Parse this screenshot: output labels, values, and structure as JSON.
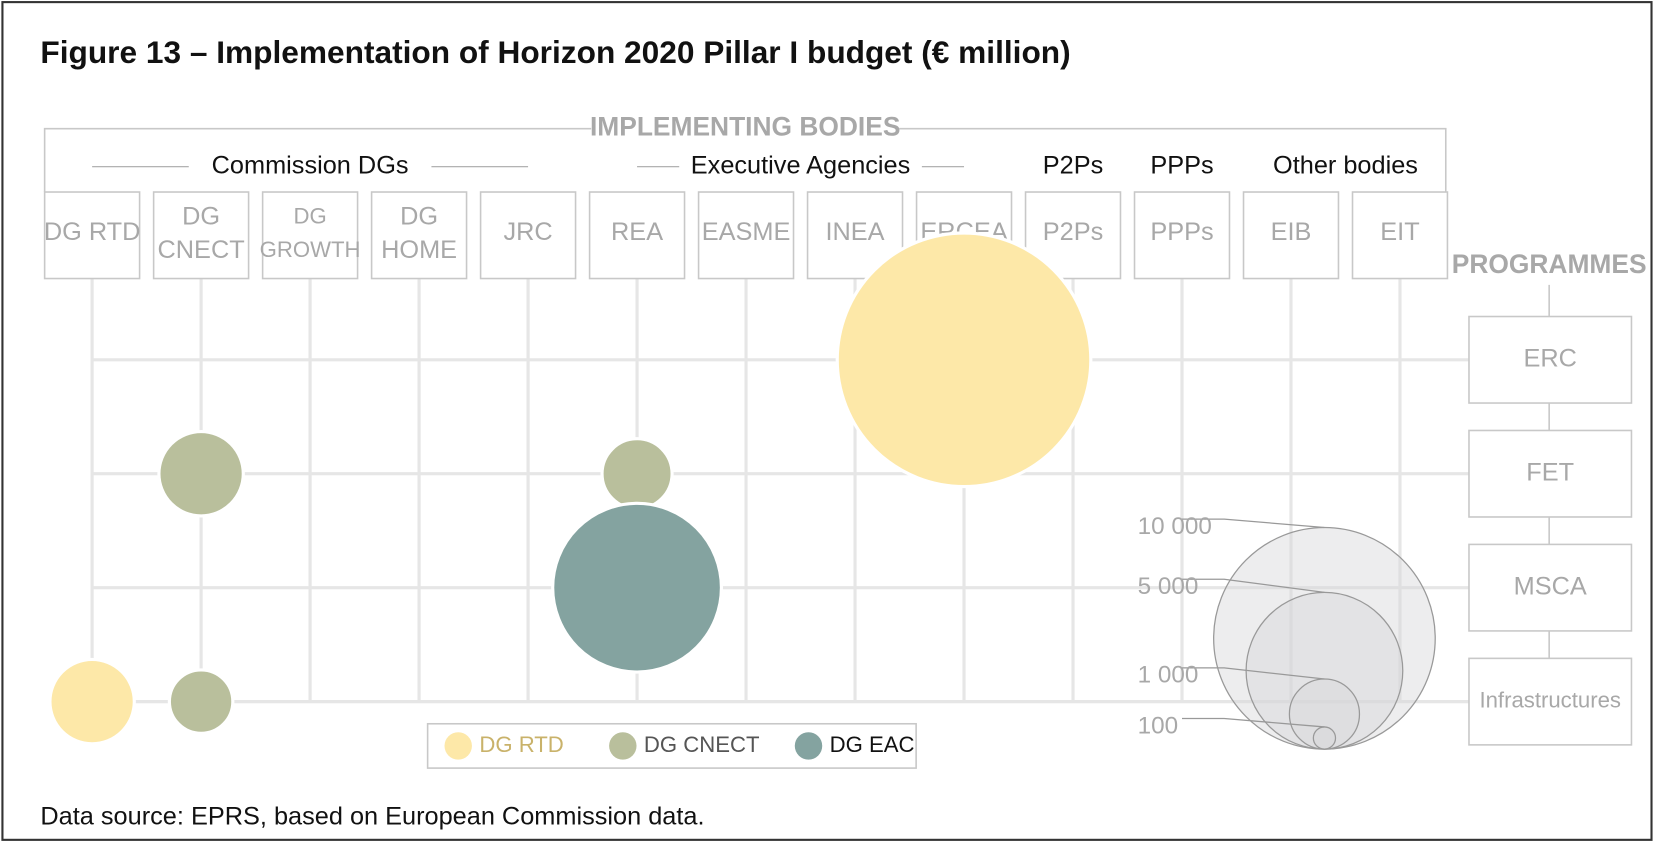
{
  "chart_data": {
    "type": "bubble",
    "title": "Figure 13 – Implementation of Horizon 2020 Pillar I budget (€ million)",
    "x_axis_label": "IMPLEMENTING BODIES",
    "y_axis_label": "PROGRAMMES",
    "x_groups": [
      {
        "label": "Commission DGs",
        "bodies": [
          "DG RTD",
          "DG CNECT",
          "DG GROWTH",
          "DG HOME",
          "JRC"
        ]
      },
      {
        "label": "Executive Agencies",
        "bodies": [
          "REA",
          "EASME",
          "INEA",
          "ERCEA"
        ]
      },
      {
        "label": "P2Ps",
        "bodies": [
          "P2Ps"
        ]
      },
      {
        "label": "PPPs",
        "bodies": [
          "PPPs"
        ]
      },
      {
        "label": "Other bodies",
        "bodies": [
          "EIB",
          "EIT"
        ]
      }
    ],
    "y_categories": [
      "ERC",
      "FET",
      "MSCA",
      "Infrastructures"
    ],
    "series": [
      {
        "name": "DG RTD",
        "color": "#fde8a8",
        "points": [
          {
            "x": "ERCEA",
            "y": "ERC",
            "size": 13100
          },
          {
            "x": "DG RTD",
            "y": "Infrastructures",
            "size": 1450
          }
        ]
      },
      {
        "name": "DG CNECT",
        "color": "#b9bf9c",
        "points": [
          {
            "x": "DG CNECT",
            "y": "FET",
            "size": 1450
          },
          {
            "x": "REA",
            "y": "FET",
            "size": 1000
          },
          {
            "x": "DG CNECT",
            "y": "Infrastructures",
            "size": 820
          }
        ]
      },
      {
        "name": "DG EAC",
        "color": "#84a3a0",
        "points": [
          {
            "x": "REA",
            "y": "MSCA",
            "size": 5800
          }
        ]
      }
    ],
    "size_legend": {
      "values": [
        10000,
        5000,
        1000,
        100
      ],
      "value_labels": [
        "10 000",
        "5 000",
        "1 000",
        "100"
      ]
    },
    "source": "Data source: EPRS, based on European Commission data."
  }
}
